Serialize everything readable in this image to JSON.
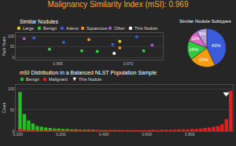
{
  "title": "Malignancy Similarity Index (mSI): 0.969",
  "chart_data": [
    {
      "type": "scatter",
      "title": "Similar Nodules",
      "ylabel": "Pack Years",
      "xlim": [
        0.962,
        0.9725
      ],
      "xticks": [
        0.965,
        {
          "value": 0.97,
          "label": "0.970"
        }
      ],
      "ylim": [
        -10,
        115
      ],
      "yticks": [
        0,
        50,
        100
      ],
      "grid": true,
      "series": [
        {
          "name": "Large",
          "color": "#e8c81e",
          "x": [
            0.9694
          ],
          "values": [
            76
          ]
        },
        {
          "name": "Benign",
          "color": "#2ecc40",
          "x": [
            0.9644,
            0.9667,
            0.9678,
            0.9711
          ],
          "values": [
            39,
            32,
            29,
            32
          ]
        },
        {
          "name": "Adeno",
          "color": "#3a5bdc",
          "x": [
            0.9633,
            0.9654,
            0.9689,
            0.9706
          ],
          "values": [
            92,
            71,
            61,
            97
          ]
        },
        {
          "name": "Squamous",
          "color": "#f08c1e",
          "x": [
            0.9672,
            0.9694
          ],
          "values": [
            84,
            45
          ]
        },
        {
          "name": "Other",
          "color": "#a05cc8",
          "x": [
            0.9626,
            0.9717
          ],
          "values": [
            89,
            58
          ]
        },
        {
          "name": "This Nodule",
          "color": "#ffffff",
          "x": [
            0.969
          ],
          "values": [
            20
          ]
        }
      ]
    },
    {
      "type": "pie",
      "title": "Similar Nodule Subtypes",
      "values": [
        43,
        22,
        16,
        10,
        9
      ],
      "value_labels": [
        "43%",
        "22%",
        "16%",
        "10%",
        "9%"
      ],
      "colors": [
        "#3a5bdc",
        "#f39c12",
        "#2ecc40",
        "#e066c8",
        "#b39ddb"
      ]
    },
    {
      "type": "histogram",
      "title": "mSI Distribution in a Balanced NLST Population Sample",
      "ylabel": "Count",
      "bins": [
        0,
        0.02,
        0.04,
        0.06,
        0.08,
        0.1,
        0.12,
        0.14,
        0.16,
        0.18,
        0.2,
        0.22,
        0.24,
        0.26,
        0.28,
        0.3,
        0.32,
        0.34,
        0.36,
        0.38,
        0.4,
        0.42,
        0.44,
        0.46,
        0.48,
        0.5,
        0.52,
        0.54,
        0.56,
        0.58,
        0.6,
        0.62,
        0.64,
        0.66,
        0.68,
        0.7,
        0.72,
        0.74,
        0.76,
        0.78,
        0.8,
        0.82,
        0.84,
        0.86,
        0.88,
        0.9,
        0.92,
        0.94,
        0.96,
        0.98,
        1.0
      ],
      "xlim": [
        -0.01,
        1.0
      ],
      "xticks": [
        {
          "value": 0,
          "label": "0.000"
        },
        {
          "value": 0.2,
          "label": "0.200"
        },
        {
          "value": 0.4,
          "label": "0.400"
        },
        {
          "value": 0.6,
          "label": "0.600"
        },
        {
          "value": 0.8,
          "label": "0.800"
        }
      ],
      "ylim": [
        0,
        110
      ],
      "yticks": [
        0,
        50,
        100
      ],
      "grid": true,
      "series": [
        {
          "name": "Benign",
          "color": "#22c022",
          "values": [
            92,
            40,
            25,
            18,
            12,
            10,
            8,
            7,
            6,
            6,
            5,
            5,
            4,
            4,
            3,
            3,
            3,
            3,
            2,
            2,
            2,
            2,
            2,
            2,
            1,
            2,
            1,
            1,
            1,
            1,
            1,
            1,
            1,
            0,
            1,
            0,
            1,
            0,
            0,
            1,
            0,
            0,
            0,
            0,
            0,
            0,
            0,
            0,
            0,
            0
          ]
        },
        {
          "name": "Malignant",
          "color": "#e02020",
          "values": [
            5,
            3,
            2,
            2,
            1,
            1,
            1,
            1,
            1,
            1,
            1,
            1,
            1,
            1,
            1,
            1,
            1,
            1,
            2,
            1,
            1,
            2,
            1,
            2,
            2,
            1,
            2,
            2,
            2,
            2,
            2,
            3,
            2,
            3,
            3,
            3,
            3,
            4,
            4,
            4,
            5,
            5,
            6,
            7,
            8,
            10,
            12,
            16,
            28,
            95
          ]
        },
        {
          "name": "This Nodule",
          "type": "scatter",
          "marker": "triangle-down",
          "color": "#ffffff",
          "x": [
            0.969
          ],
          "values": [
            88
          ]
        }
      ]
    }
  ]
}
